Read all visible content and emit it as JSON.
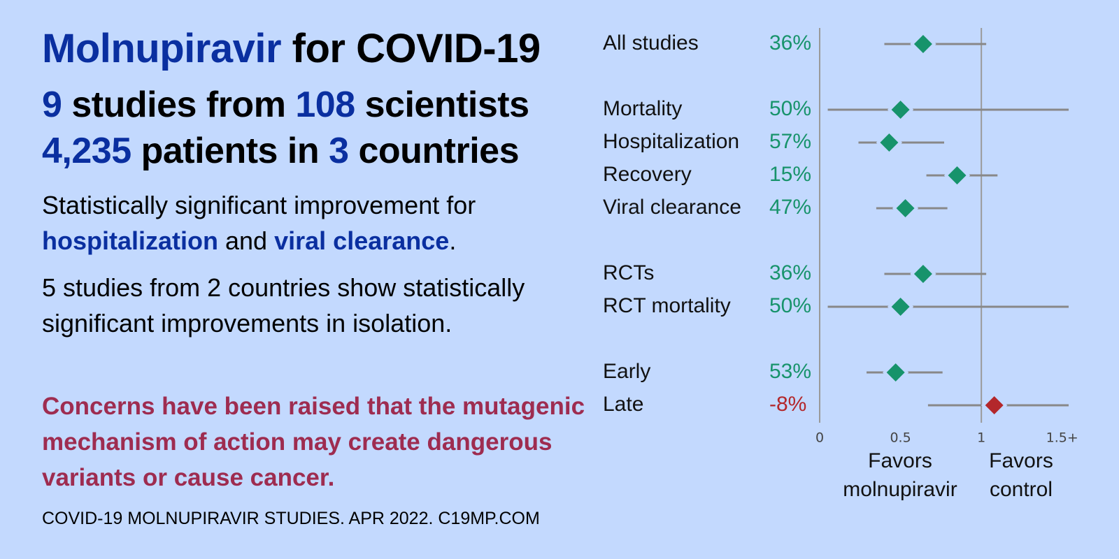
{
  "header": {
    "title_drug": "Molnupiravir",
    "title_rest": "for COVID-19",
    "line1": {
      "studies": "9",
      "t1": "studies from",
      "scientists": "108",
      "t2": "scientists"
    },
    "line2": {
      "patients": "4,235",
      "t1": "patients in",
      "countries": "3",
      "t2": "countries"
    }
  },
  "summary": {
    "lead": "Statistically significant improvement for",
    "outcome1": "hospitalization",
    "join": "and",
    "outcome2": "viral clearance",
    "end": "."
  },
  "isolation": "5 studies from 2 countries show statistically significant improvements in isolation.",
  "warning": "Concerns have been raised that the mutagenic mechanism of action may create dangerous variants or cause cancer.",
  "footer": "COVID-19 MOLNUPIRAVIR STUDIES. APR 2022. C19MP.COM",
  "chart_data": {
    "type": "forest",
    "xlim": [
      0,
      1.54
    ],
    "xticks": [
      0,
      0.5,
      1,
      {
        "value": 1.5,
        "label": "1.5+"
      }
    ],
    "favors_left": "Favors molnupiravir",
    "favors_right": "Favors control",
    "groups": [
      {
        "rows": [
          {
            "label": "All studies",
            "improvement": "36%",
            "estimate": 0.64,
            "ci": [
              0.4,
              1.03
            ],
            "color": "#17936b"
          }
        ]
      },
      {
        "rows": [
          {
            "label": "Mortality",
            "improvement": "50%",
            "estimate": 0.5,
            "ci": [
              0.05,
              1.6
            ],
            "color": "#17936b"
          },
          {
            "label": "Hospitalization",
            "improvement": "57%",
            "estimate": 0.43,
            "ci": [
              0.24,
              0.77
            ],
            "color": "#17936b"
          },
          {
            "label": "Recovery",
            "improvement": "15%",
            "estimate": 0.85,
            "ci": [
              0.66,
              1.1
            ],
            "color": "#17936b"
          },
          {
            "label": "Viral clearance",
            "improvement": "47%",
            "estimate": 0.53,
            "ci": [
              0.35,
              0.79
            ],
            "color": "#17936b"
          }
        ]
      },
      {
        "rows": [
          {
            "label": "RCTs",
            "improvement": "36%",
            "estimate": 0.64,
            "ci": [
              0.4,
              1.03
            ],
            "color": "#17936b"
          },
          {
            "label": "RCT mortality",
            "improvement": "50%",
            "estimate": 0.5,
            "ci": [
              0.05,
              1.6
            ],
            "color": "#17936b"
          }
        ]
      },
      {
        "rows": [
          {
            "label": "Early",
            "improvement": "53%",
            "estimate": 0.47,
            "ci": [
              0.29,
              0.76
            ],
            "color": "#17936b"
          },
          {
            "label": "Late",
            "improvement": "-8%",
            "estimate": 1.08,
            "ci": [
              0.67,
              1.6
            ],
            "color": "#b3272b"
          }
        ]
      }
    ]
  }
}
